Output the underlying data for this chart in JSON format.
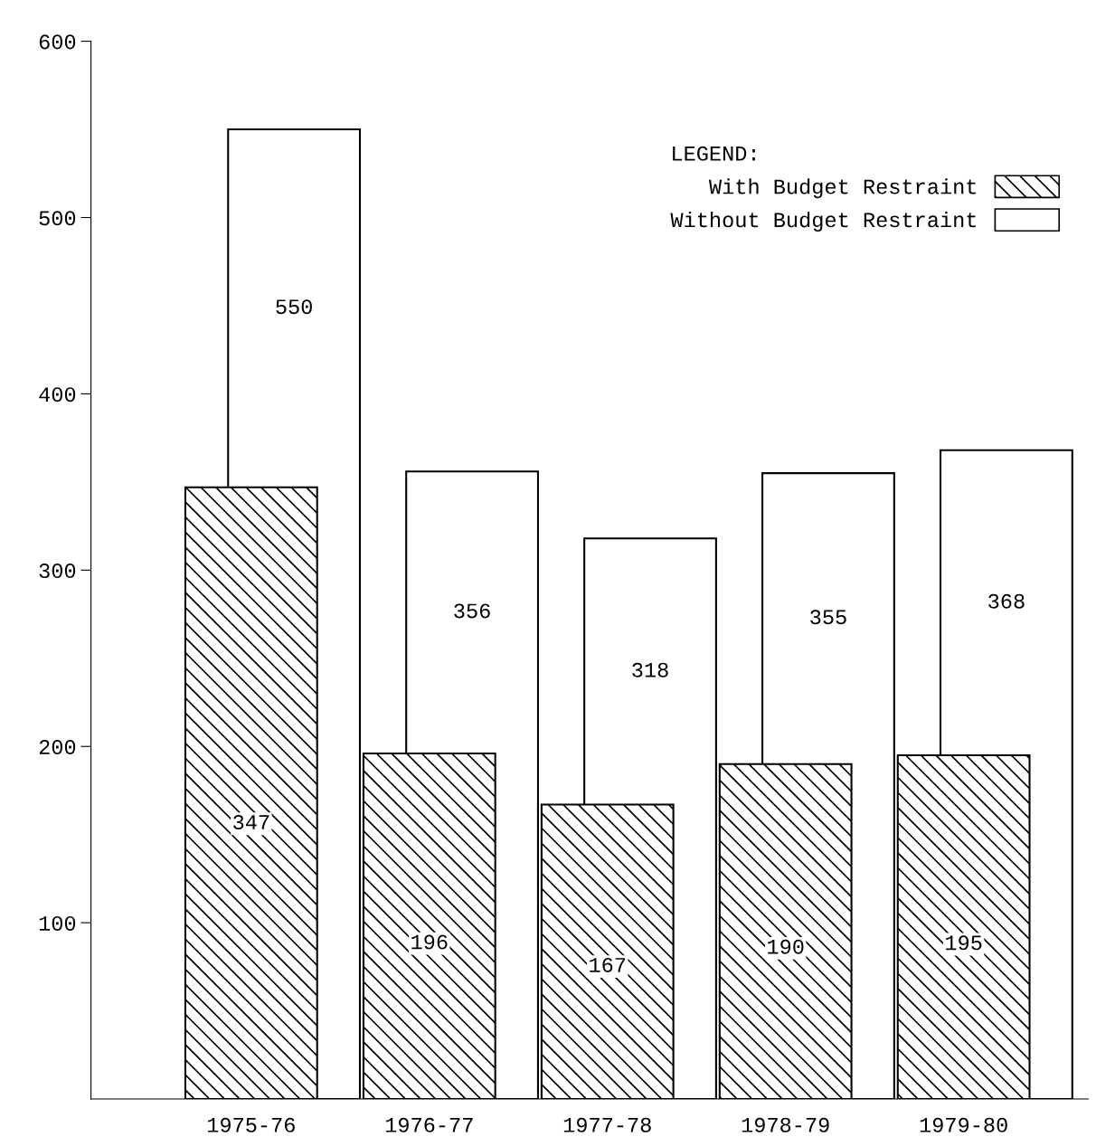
{
  "chart_data": {
    "type": "bar",
    "categories": [
      "1975-76",
      "1976-77",
      "1977-78",
      "1978-79",
      "1979-80"
    ],
    "series": [
      {
        "name": "With Budget Restraint",
        "color": "#000000",
        "values": [
          347,
          196,
          167,
          190,
          195
        ]
      },
      {
        "name": "Without Budget Restraint",
        "color": "#000000",
        "values": [
          550,
          356,
          318,
          355,
          368
        ]
      }
    ],
    "ylim": [
      0,
      600
    ],
    "yticks": [
      100,
      200,
      300,
      400,
      500,
      600
    ],
    "legend": "top right",
    "legend_title": "LEGEND:",
    "data_labels": true,
    "grid": false
  }
}
